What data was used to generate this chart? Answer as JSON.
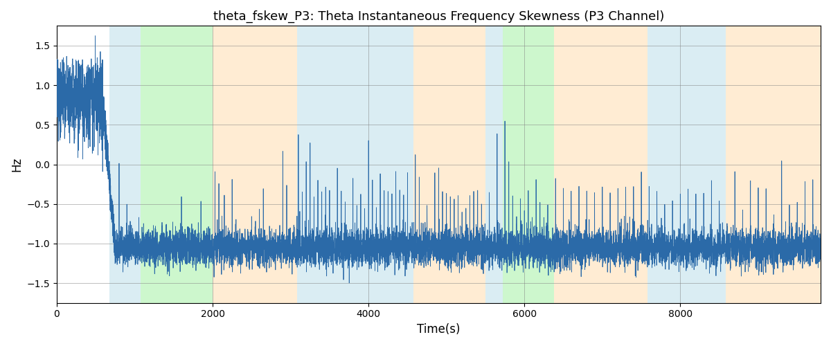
{
  "title": "theta_fskew_P3: Theta Instantaneous Frequency Skewness (P3 Channel)",
  "xlabel": "Time(s)",
  "ylabel": "Hz",
  "ylim": [
    -1.75,
    1.75
  ],
  "xlim": [
    0,
    9800
  ],
  "yticks": [
    -1.5,
    -1.0,
    -0.5,
    0.0,
    0.5,
    1.0,
    1.5
  ],
  "xticks": [
    0,
    2000,
    4000,
    6000,
    8000
  ],
  "line_color": "#2b6aa8",
  "background_color": "#ffffff",
  "bands": [
    {
      "xmin": 680,
      "xmax": 1080,
      "color": "#add8e6",
      "alpha": 0.45
    },
    {
      "xmin": 1080,
      "xmax": 2000,
      "color": "#90ee90",
      "alpha": 0.45
    },
    {
      "xmin": 2000,
      "xmax": 3080,
      "color": "#ffd59e",
      "alpha": 0.45
    },
    {
      "xmin": 3080,
      "xmax": 4580,
      "color": "#add8e6",
      "alpha": 0.45
    },
    {
      "xmin": 4580,
      "xmax": 5500,
      "color": "#ffd59e",
      "alpha": 0.45
    },
    {
      "xmin": 5500,
      "xmax": 5720,
      "color": "#add8e6",
      "alpha": 0.45
    },
    {
      "xmin": 5720,
      "xmax": 6380,
      "color": "#90ee90",
      "alpha": 0.45
    },
    {
      "xmin": 6380,
      "xmax": 7580,
      "color": "#ffd59e",
      "alpha": 0.45
    },
    {
      "xmin": 7580,
      "xmax": 8580,
      "color": "#add8e6",
      "alpha": 0.45
    },
    {
      "xmin": 8580,
      "xmax": 9800,
      "color": "#ffd59e",
      "alpha": 0.45
    }
  ]
}
